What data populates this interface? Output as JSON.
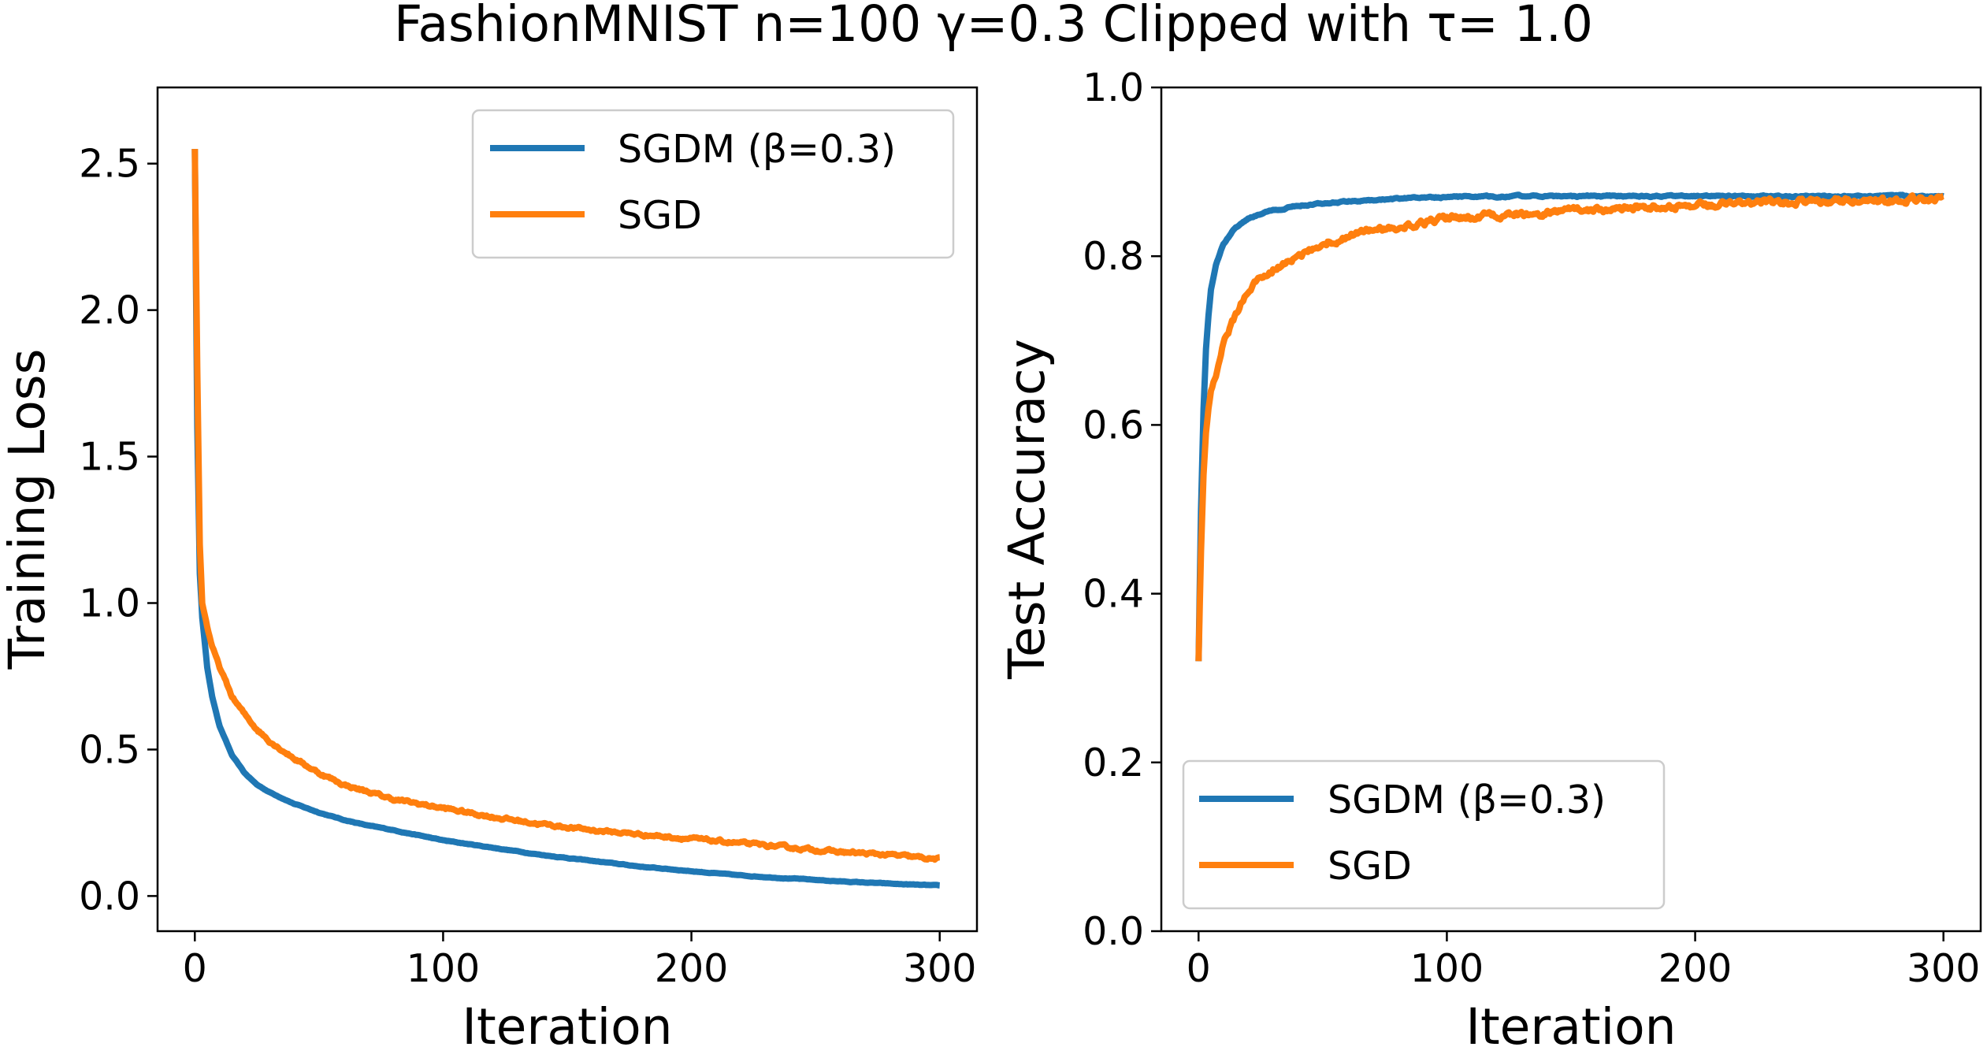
{
  "suptitle": "FashionMNIST n=100 γ=0.3 Clipped with τ= 1.0",
  "colors": {
    "sgdm": "#1f77b4",
    "sgd": "#ff7f0e",
    "sgd_band": "#ffcf9a"
  },
  "chart_data": [
    {
      "type": "line",
      "xlabel": "Iteration",
      "ylabel": "Training Loss",
      "xlim": [
        -15,
        315
      ],
      "ylim": [
        -0.12,
        2.76
      ],
      "xticks": [
        0,
        100,
        200,
        300
      ],
      "yticks": [
        0.0,
        0.5,
        1.0,
        1.5,
        2.0,
        2.5
      ],
      "ytick_labels": [
        "0.0",
        "0.5",
        "1.0",
        "1.5",
        "2.0",
        "2.5"
      ],
      "legend": "upper right",
      "grid": false,
      "series": [
        {
          "name": "SGDM (β=0.3)",
          "x": [
            0,
            1,
            2,
            3,
            5,
            7,
            10,
            15,
            20,
            25,
            30,
            40,
            50,
            60,
            70,
            80,
            100,
            120,
            140,
            160,
            180,
            200,
            220,
            240,
            260,
            280,
            300
          ],
          "y": [
            2.55,
            1.6,
            1.1,
            0.95,
            0.78,
            0.68,
            0.58,
            0.48,
            0.42,
            0.38,
            0.355,
            0.315,
            0.285,
            0.26,
            0.24,
            0.225,
            0.19,
            0.165,
            0.14,
            0.12,
            0.1,
            0.085,
            0.07,
            0.06,
            0.05,
            0.042,
            0.035
          ]
        },
        {
          "name": "SGD",
          "x": [
            0,
            1,
            2,
            3,
            5,
            7,
            10,
            15,
            20,
            25,
            30,
            40,
            50,
            60,
            70,
            80,
            100,
            120,
            140,
            160,
            180,
            200,
            220,
            240,
            260,
            280,
            300
          ],
          "y": [
            2.55,
            1.8,
            1.2,
            1.0,
            0.92,
            0.85,
            0.78,
            0.68,
            0.62,
            0.57,
            0.53,
            0.47,
            0.42,
            0.38,
            0.355,
            0.33,
            0.3,
            0.27,
            0.245,
            0.225,
            0.21,
            0.195,
            0.18,
            0.165,
            0.15,
            0.14,
            0.125
          ]
        }
      ]
    },
    {
      "type": "line",
      "xlabel": "Iteration",
      "ylabel": "Test Accuracy",
      "xlim": [
        -15,
        315
      ],
      "ylim": [
        0.0,
        1.0
      ],
      "xticks": [
        0,
        100,
        200,
        300
      ],
      "yticks": [
        0.0,
        0.2,
        0.4,
        0.6,
        0.8,
        1.0
      ],
      "ytick_labels": [
        "0.0",
        "0.2",
        "0.4",
        "0.6",
        "0.8",
        "1.0"
      ],
      "legend": "lower left",
      "grid": false,
      "series": [
        {
          "name": "SGDM (β=0.3)",
          "x": [
            0,
            1,
            2,
            3,
            4,
            5,
            7,
            10,
            15,
            20,
            30,
            40,
            60,
            80,
            100,
            130,
            160,
            200,
            250,
            300
          ],
          "y": [
            0.32,
            0.5,
            0.62,
            0.69,
            0.73,
            0.76,
            0.79,
            0.815,
            0.835,
            0.845,
            0.855,
            0.86,
            0.865,
            0.868,
            0.87,
            0.871,
            0.871,
            0.871,
            0.871,
            0.871
          ]
        },
        {
          "name": "SGD",
          "x": [
            0,
            1,
            2,
            3,
            4,
            5,
            7,
            10,
            15,
            20,
            30,
            40,
            50,
            60,
            80,
            100,
            130,
            160,
            200,
            250,
            300
          ],
          "y": [
            0.32,
            0.45,
            0.54,
            0.59,
            0.62,
            0.64,
            0.66,
            0.7,
            0.73,
            0.76,
            0.785,
            0.8,
            0.815,
            0.825,
            0.835,
            0.845,
            0.85,
            0.855,
            0.86,
            0.865,
            0.868
          ]
        }
      ]
    }
  ]
}
